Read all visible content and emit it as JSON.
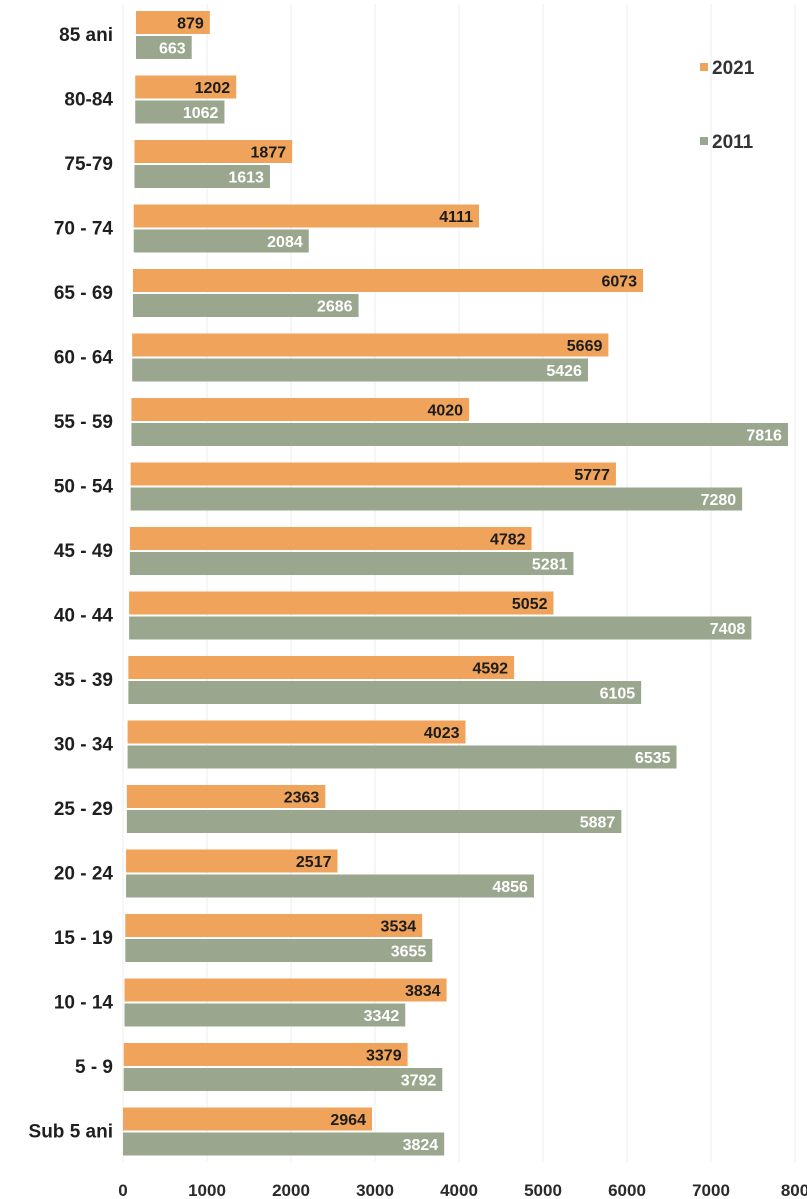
{
  "chart_data": {
    "type": "bar",
    "orientation": "horizontal",
    "title": "",
    "xlabel": "",
    "ylabel": "",
    "categories": [
      "85 ani",
      "80-84",
      "75-79",
      "70 - 74",
      "65 - 69",
      "60 - 64",
      "55 - 59",
      "50 - 54",
      "45 - 49",
      "40 - 44",
      "35 - 39",
      "30 - 34",
      "25 - 29",
      "20 - 24",
      "15 - 19",
      "10 - 14",
      "5 - 9",
      "Sub 5 ani"
    ],
    "series": [
      {
        "name": "2021",
        "color": "#F0A35A",
        "values": [
          879,
          1202,
          1877,
          4111,
          6073,
          5669,
          4020,
          5777,
          4782,
          5052,
          4592,
          4023,
          2363,
          2517,
          3534,
          3834,
          3379,
          2964
        ]
      },
      {
        "name": "2011",
        "color": "#9AA78E",
        "values": [
          663,
          1062,
          1613,
          2084,
          2686,
          5426,
          7816,
          7280,
          5281,
          7408,
          6105,
          6535,
          5887,
          4856,
          3655,
          3342,
          3792,
          3824
        ]
      }
    ],
    "xlim": [
      0,
      8000
    ],
    "xticks": [
      "0",
      "1000",
      "2000",
      "3000",
      "4000",
      "5000",
      "6000",
      "7000",
      "800"
    ],
    "grid": true,
    "legend": "top-right"
  }
}
